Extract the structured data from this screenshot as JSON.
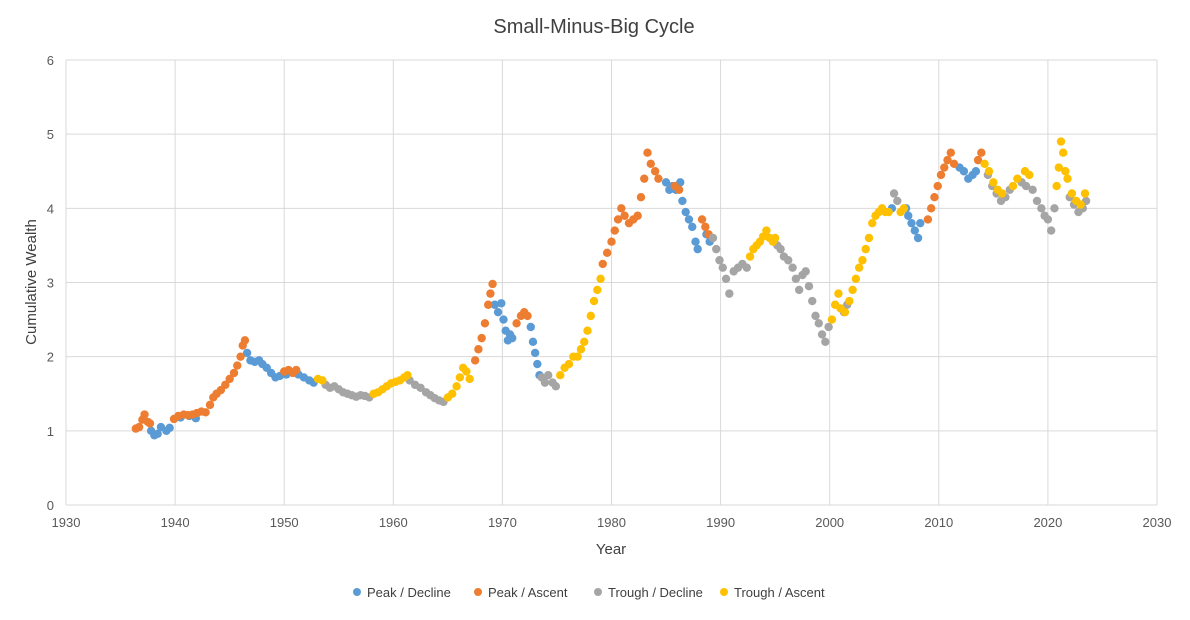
{
  "chart_data": {
    "type": "scatter",
    "title": "Small-Minus-Big Cycle",
    "xlabel": "Year",
    "ylabel": "Cumulative Wealth",
    "xlim": [
      1930,
      2030
    ],
    "ylim": [
      0,
      6
    ],
    "x_ticks": [
      1930,
      1940,
      1950,
      1960,
      1970,
      1980,
      1990,
      2000,
      2010,
      2020,
      2030
    ],
    "y_ticks": [
      0,
      1,
      2,
      3,
      4,
      5,
      6
    ],
    "grid": true,
    "legend_position": "bottom",
    "series": [
      {
        "name": "Peak / Decline",
        "color": "#5B9BD5",
        "points": [
          [
            1937.8,
            1.0
          ],
          [
            1938.1,
            0.94
          ],
          [
            1938.4,
            0.96
          ],
          [
            1938.7,
            1.05
          ],
          [
            1939.2,
            1.0
          ],
          [
            1939.5,
            1.04
          ],
          [
            1940.5,
            1.18
          ],
          [
            1941.3,
            1.2
          ],
          [
            1941.9,
            1.17
          ],
          [
            1946.6,
            2.05
          ],
          [
            1946.9,
            1.95
          ],
          [
            1947.3,
            1.93
          ],
          [
            1947.7,
            1.95
          ],
          [
            1948.0,
            1.9
          ],
          [
            1948.4,
            1.85
          ],
          [
            1948.8,
            1.78
          ],
          [
            1949.2,
            1.72
          ],
          [
            1949.6,
            1.74
          ],
          [
            1950.2,
            1.76
          ],
          [
            1951.3,
            1.76
          ],
          [
            1951.8,
            1.72
          ],
          [
            1952.3,
            1.68
          ],
          [
            1952.7,
            1.65
          ],
          [
            1969.3,
            2.7
          ],
          [
            1969.6,
            2.6
          ],
          [
            1969.9,
            2.72
          ],
          [
            1970.1,
            2.5
          ],
          [
            1970.3,
            2.35
          ],
          [
            1970.5,
            2.22
          ],
          [
            1970.7,
            2.3
          ],
          [
            1970.9,
            2.25
          ],
          [
            1972.6,
            2.4
          ],
          [
            1972.8,
            2.2
          ],
          [
            1973.0,
            2.05
          ],
          [
            1973.2,
            1.9
          ],
          [
            1973.4,
            1.75
          ],
          [
            1985.0,
            4.35
          ],
          [
            1985.3,
            4.25
          ],
          [
            1985.6,
            4.3
          ],
          [
            1985.9,
            4.25
          ],
          [
            1986.3,
            4.35
          ],
          [
            1986.5,
            4.1
          ],
          [
            1986.8,
            3.95
          ],
          [
            1987.1,
            3.85
          ],
          [
            1987.4,
            3.75
          ],
          [
            1987.7,
            3.55
          ],
          [
            1987.9,
            3.45
          ],
          [
            1988.7,
            3.65
          ],
          [
            1989.0,
            3.55
          ],
          [
            2005.7,
            4.0
          ],
          [
            2007.0,
            4.0
          ],
          [
            2007.2,
            3.9
          ],
          [
            2007.5,
            3.8
          ],
          [
            2007.8,
            3.7
          ],
          [
            2008.1,
            3.6
          ],
          [
            2008.3,
            3.8
          ],
          [
            2011.9,
            4.55
          ],
          [
            2012.3,
            4.5
          ],
          [
            2012.7,
            4.4
          ],
          [
            2013.1,
            4.45
          ],
          [
            2013.4,
            4.5
          ]
        ]
      },
      {
        "name": "Peak / Ascent",
        "color": "#ED7D31",
        "points": [
          [
            1936.4,
            1.03
          ],
          [
            1936.7,
            1.05
          ],
          [
            1937.0,
            1.15
          ],
          [
            1937.2,
            1.22
          ],
          [
            1937.5,
            1.12
          ],
          [
            1937.7,
            1.1
          ],
          [
            1939.9,
            1.16
          ],
          [
            1940.3,
            1.2
          ],
          [
            1940.8,
            1.22
          ],
          [
            1941.2,
            1.21
          ],
          [
            1941.6,
            1.22
          ],
          [
            1942.0,
            1.24
          ],
          [
            1942.4,
            1.26
          ],
          [
            1942.8,
            1.25
          ],
          [
            1943.2,
            1.35
          ],
          [
            1943.5,
            1.45
          ],
          [
            1943.8,
            1.5
          ],
          [
            1944.2,
            1.55
          ],
          [
            1944.6,
            1.62
          ],
          [
            1945.0,
            1.7
          ],
          [
            1945.4,
            1.78
          ],
          [
            1945.7,
            1.88
          ],
          [
            1946.0,
            2.0
          ],
          [
            1946.2,
            2.15
          ],
          [
            1946.4,
            2.22
          ],
          [
            1950.0,
            1.8
          ],
          [
            1950.4,
            1.82
          ],
          [
            1950.8,
            1.78
          ],
          [
            1951.1,
            1.82
          ],
          [
            1967.5,
            1.95
          ],
          [
            1967.8,
            2.1
          ],
          [
            1968.1,
            2.25
          ],
          [
            1968.4,
            2.45
          ],
          [
            1968.7,
            2.7
          ],
          [
            1968.9,
            2.85
          ],
          [
            1969.1,
            2.98
          ],
          [
            1971.3,
            2.45
          ],
          [
            1971.7,
            2.55
          ],
          [
            1972.0,
            2.6
          ],
          [
            1972.3,
            2.55
          ],
          [
            1979.2,
            3.25
          ],
          [
            1979.6,
            3.4
          ],
          [
            1980.0,
            3.55
          ],
          [
            1980.3,
            3.7
          ],
          [
            1980.6,
            3.85
          ],
          [
            1980.9,
            4.0
          ],
          [
            1981.2,
            3.9
          ],
          [
            1981.6,
            3.8
          ],
          [
            1982.0,
            3.85
          ],
          [
            1982.4,
            3.9
          ],
          [
            1982.7,
            4.15
          ],
          [
            1983.0,
            4.4
          ],
          [
            1983.3,
            4.75
          ],
          [
            1983.6,
            4.6
          ],
          [
            1984.0,
            4.5
          ],
          [
            1984.3,
            4.4
          ],
          [
            1985.8,
            4.3
          ],
          [
            1986.2,
            4.25
          ],
          [
            1988.3,
            3.85
          ],
          [
            1988.6,
            3.75
          ],
          [
            1988.9,
            3.65
          ],
          [
            2009.0,
            3.85
          ],
          [
            2009.3,
            4.0
          ],
          [
            2009.6,
            4.15
          ],
          [
            2009.9,
            4.3
          ],
          [
            2010.2,
            4.45
          ],
          [
            2010.5,
            4.55
          ],
          [
            2010.8,
            4.65
          ],
          [
            2011.1,
            4.75
          ],
          [
            2011.4,
            4.6
          ],
          [
            2013.6,
            4.65
          ],
          [
            2013.9,
            4.75
          ]
        ]
      },
      {
        "name": "Trough / Decline",
        "color": "#A5A5A5",
        "points": [
          [
            1953.8,
            1.62
          ],
          [
            1954.2,
            1.58
          ],
          [
            1954.6,
            1.6
          ],
          [
            1955.0,
            1.56
          ],
          [
            1955.4,
            1.52
          ],
          [
            1955.8,
            1.5
          ],
          [
            1956.2,
            1.48
          ],
          [
            1956.6,
            1.46
          ],
          [
            1957.0,
            1.48
          ],
          [
            1957.4,
            1.47
          ],
          [
            1957.8,
            1.45
          ],
          [
            1961.5,
            1.68
          ],
          [
            1962.0,
            1.62
          ],
          [
            1962.5,
            1.58
          ],
          [
            1963.0,
            1.52
          ],
          [
            1963.4,
            1.48
          ],
          [
            1963.8,
            1.44
          ],
          [
            1964.2,
            1.41
          ],
          [
            1964.6,
            1.39
          ],
          [
            1973.6,
            1.72
          ],
          [
            1973.9,
            1.65
          ],
          [
            1974.2,
            1.75
          ],
          [
            1974.6,
            1.65
          ],
          [
            1974.9,
            1.6
          ],
          [
            1989.3,
            3.6
          ],
          [
            1989.6,
            3.45
          ],
          [
            1989.9,
            3.3
          ],
          [
            1990.2,
            3.2
          ],
          [
            1990.5,
            3.05
          ],
          [
            1990.8,
            2.85
          ],
          [
            1991.2,
            3.15
          ],
          [
            1991.6,
            3.2
          ],
          [
            1992.0,
            3.25
          ],
          [
            1992.4,
            3.2
          ],
          [
            1995.2,
            3.5
          ],
          [
            1995.5,
            3.45
          ],
          [
            1995.8,
            3.35
          ],
          [
            1996.2,
            3.3
          ],
          [
            1996.6,
            3.2
          ],
          [
            1996.9,
            3.05
          ],
          [
            1997.2,
            2.9
          ],
          [
            1997.5,
            3.1
          ],
          [
            1997.8,
            3.15
          ],
          [
            1998.1,
            2.95
          ],
          [
            1998.4,
            2.75
          ],
          [
            1998.7,
            2.55
          ],
          [
            1999.0,
            2.45
          ],
          [
            1999.3,
            2.3
          ],
          [
            1999.6,
            2.2
          ],
          [
            1999.9,
            2.4
          ],
          [
            2001.3,
            2.6
          ],
          [
            2001.6,
            2.7
          ],
          [
            2005.9,
            4.2
          ],
          [
            2006.2,
            4.1
          ],
          [
            2014.5,
            4.45
          ],
          [
            2014.9,
            4.3
          ],
          [
            2015.3,
            4.2
          ],
          [
            2015.7,
            4.1
          ],
          [
            2016.1,
            4.15
          ],
          [
            2016.5,
            4.25
          ],
          [
            2017.6,
            4.35
          ],
          [
            2018.0,
            4.3
          ],
          [
            2018.6,
            4.25
          ],
          [
            2019.0,
            4.1
          ],
          [
            2019.4,
            4.0
          ],
          [
            2019.7,
            3.9
          ],
          [
            2020.0,
            3.85
          ],
          [
            2020.3,
            3.7
          ],
          [
            2020.6,
            4.0
          ],
          [
            2022.0,
            4.15
          ],
          [
            2022.4,
            4.05
          ],
          [
            2022.8,
            3.95
          ],
          [
            2023.2,
            4.0
          ],
          [
            2023.5,
            4.1
          ]
        ]
      },
      {
        "name": "Trough / Ascent",
        "color": "#FFC000",
        "points": [
          [
            1953.1,
            1.7
          ],
          [
            1953.5,
            1.68
          ],
          [
            1958.2,
            1.5
          ],
          [
            1958.6,
            1.52
          ],
          [
            1959.0,
            1.56
          ],
          [
            1959.4,
            1.6
          ],
          [
            1959.8,
            1.64
          ],
          [
            1960.2,
            1.66
          ],
          [
            1960.6,
            1.68
          ],
          [
            1961.0,
            1.72
          ],
          [
            1961.3,
            1.75
          ],
          [
            1965.0,
            1.45
          ],
          [
            1965.4,
            1.5
          ],
          [
            1965.8,
            1.6
          ],
          [
            1966.1,
            1.72
          ],
          [
            1966.4,
            1.85
          ],
          [
            1966.7,
            1.8
          ],
          [
            1967.0,
            1.7
          ],
          [
            1975.3,
            1.75
          ],
          [
            1975.7,
            1.85
          ],
          [
            1976.1,
            1.9
          ],
          [
            1976.5,
            2.0
          ],
          [
            1976.9,
            2.0
          ],
          [
            1977.2,
            2.1
          ],
          [
            1977.5,
            2.2
          ],
          [
            1977.8,
            2.35
          ],
          [
            1978.1,
            2.55
          ],
          [
            1978.4,
            2.75
          ],
          [
            1978.7,
            2.9
          ],
          [
            1979.0,
            3.05
          ],
          [
            1992.7,
            3.35
          ],
          [
            1993.0,
            3.45
          ],
          [
            1993.3,
            3.5
          ],
          [
            1993.6,
            3.55
          ],
          [
            1993.9,
            3.62
          ],
          [
            1994.2,
            3.7
          ],
          [
            1994.5,
            3.6
          ],
          [
            1994.8,
            3.55
          ],
          [
            1995.0,
            3.6
          ],
          [
            2000.2,
            2.5
          ],
          [
            2000.5,
            2.7
          ],
          [
            2000.8,
            2.85
          ],
          [
            2001.0,
            2.65
          ],
          [
            2001.4,
            2.6
          ],
          [
            2001.8,
            2.75
          ],
          [
            2002.1,
            2.9
          ],
          [
            2002.4,
            3.05
          ],
          [
            2002.7,
            3.2
          ],
          [
            2003.0,
            3.3
          ],
          [
            2003.3,
            3.45
          ],
          [
            2003.6,
            3.6
          ],
          [
            2003.9,
            3.8
          ],
          [
            2004.2,
            3.9
          ],
          [
            2004.5,
            3.95
          ],
          [
            2004.8,
            4.0
          ],
          [
            2005.1,
            3.95
          ],
          [
            2005.4,
            3.95
          ],
          [
            2006.5,
            3.95
          ],
          [
            2006.8,
            4.0
          ],
          [
            2014.2,
            4.6
          ],
          [
            2014.6,
            4.5
          ],
          [
            2015.0,
            4.35
          ],
          [
            2015.4,
            4.25
          ],
          [
            2015.8,
            4.2
          ],
          [
            2016.8,
            4.3
          ],
          [
            2017.2,
            4.4
          ],
          [
            2017.9,
            4.5
          ],
          [
            2018.3,
            4.45
          ],
          [
            2020.8,
            4.3
          ],
          [
            2021.0,
            4.55
          ],
          [
            2021.2,
            4.9
          ],
          [
            2021.4,
            4.75
          ],
          [
            2021.6,
            4.5
          ],
          [
            2021.8,
            4.4
          ],
          [
            2022.2,
            4.2
          ],
          [
            2022.6,
            4.1
          ],
          [
            2023.0,
            4.05
          ],
          [
            2023.4,
            4.2
          ]
        ]
      }
    ]
  }
}
